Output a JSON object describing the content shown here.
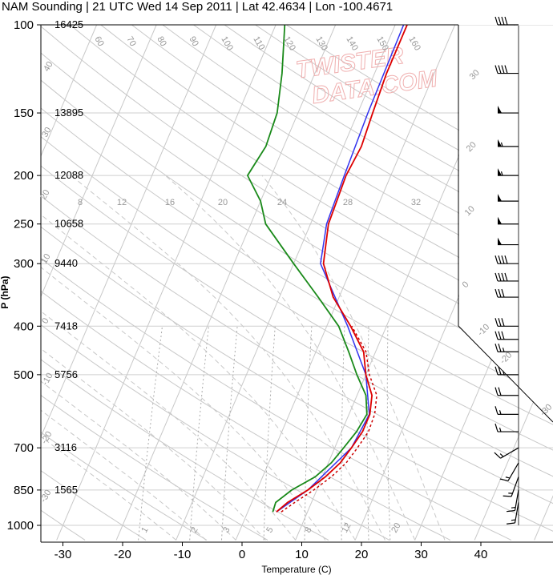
{
  "title": "NAM Sounding | 21 UTC Wed 14 Sep 2011 | Lat 42.4634 | Lon -100.4671",
  "watermark_line1": "TWISTER",
  "watermark_line2": "DATA.COM",
  "colors": {
    "temperature": "#dd0000",
    "virtual_temperature": "#cc0000",
    "dewpoint": "#1a8a1a",
    "parcel": "#3333ee",
    "isotherm": "#c8c8c8",
    "dry_adiabat": "#c8c8c8",
    "moist_adiabat": "#c8c8c8",
    "mixing_ratio": "#aaaaaa",
    "barb": "#000000"
  },
  "chart_data": {
    "type": "skew-t",
    "xlabel": "Temperature (C)",
    "ylabel": "P (hPa)",
    "xlim": [
      -34,
      52
    ],
    "ylim": [
      1070,
      100
    ],
    "x_ticks": [
      -30,
      -20,
      -10,
      0,
      10,
      20,
      30,
      40
    ],
    "p_ticks": [
      100,
      150,
      200,
      250,
      300,
      400,
      500,
      700,
      850,
      1000
    ],
    "heights_m": [
      {
        "p": 100,
        "z": "16425"
      },
      {
        "p": 150,
        "z": "13895"
      },
      {
        "p": 200,
        "z": "12088"
      },
      {
        "p": 250,
        "z": "10658"
      },
      {
        "p": 300,
        "z": "9440"
      },
      {
        "p": 400,
        "z": "7418"
      },
      {
        "p": 500,
        "z": "5756"
      },
      {
        "p": 700,
        "z": "3116"
      },
      {
        "p": 850,
        "z": "1565"
      }
    ],
    "mixing_ratio_labels": [
      "8",
      "12",
      "16",
      "20",
      "24",
      "28",
      "32"
    ],
    "isotherm_labels_top": [
      "60",
      "70",
      "80",
      "90",
      "100",
      "110",
      "120",
      "130",
      "140",
      "150",
      "160"
    ],
    "moist_labels_bottom": [
      "1",
      "2",
      "3",
      "5",
      "8",
      "12",
      "20"
    ],
    "right_labels": [
      "30",
      "20",
      "10",
      "0",
      "-10",
      "-20",
      "-30"
    ],
    "left_labels": [
      "40",
      "30",
      "20",
      "10",
      "0",
      "-10",
      "-20",
      "-30"
    ],
    "temperature": [
      {
        "p": 940,
        "t": 4.8
      },
      {
        "p": 900,
        "t": 6.0
      },
      {
        "p": 850,
        "t": 8.5
      },
      {
        "p": 800,
        "t": 10.5
      },
      {
        "p": 750,
        "t": 12.0
      },
      {
        "p": 700,
        "t": 12.8
      },
      {
        "p": 650,
        "t": 13.5
      },
      {
        "p": 600,
        "t": 13.5
      },
      {
        "p": 550,
        "t": 12.5
      },
      {
        "p": 500,
        "t": 10.0
      },
      {
        "p": 450,
        "t": 8.0
      },
      {
        "p": 400,
        "t": 4.0
      },
      {
        "p": 350,
        "t": -1.0
      },
      {
        "p": 300,
        "t": -5.0
      },
      {
        "p": 250,
        "t": -7.0
      },
      {
        "p": 200,
        "t": -7.5
      },
      {
        "p": 175,
        "t": -7.0
      },
      {
        "p": 150,
        "t": -7.5
      },
      {
        "p": 125,
        "t": -8.0
      },
      {
        "p": 100,
        "t": -8.0
      }
    ],
    "virtual_temperature": [
      {
        "p": 940,
        "t": 5.6
      },
      {
        "p": 900,
        "t": 7.2
      },
      {
        "p": 850,
        "t": 9.5
      },
      {
        "p": 800,
        "t": 11.5
      },
      {
        "p": 750,
        "t": 13.0
      },
      {
        "p": 700,
        "t": 13.8
      },
      {
        "p": 650,
        "t": 14.5
      },
      {
        "p": 600,
        "t": 14.3
      },
      {
        "p": 550,
        "t": 13.3
      },
      {
        "p": 500,
        "t": 10.6
      },
      {
        "p": 450,
        "t": 8.4
      },
      {
        "p": 400,
        "t": 4.2
      }
    ],
    "dewpoint": [
      {
        "p": 940,
        "t": 4.2
      },
      {
        "p": 900,
        "t": 4.0
      },
      {
        "p": 850,
        "t": 5.8
      },
      {
        "p": 800,
        "t": 8.8
      },
      {
        "p": 750,
        "t": 10.5
      },
      {
        "p": 700,
        "t": 11.5
      },
      {
        "p": 650,
        "t": 12.5
      },
      {
        "p": 600,
        "t": 13.0
      },
      {
        "p": 550,
        "t": 11.5
      },
      {
        "p": 500,
        "t": 8.5
      },
      {
        "p": 450,
        "t": 5.5
      },
      {
        "p": 400,
        "t": 2.0
      },
      {
        "p": 350,
        "t": -3.5
      },
      {
        "p": 300,
        "t": -10.0
      },
      {
        "p": 250,
        "t": -17.5
      },
      {
        "p": 225,
        "t": -20.0
      },
      {
        "p": 200,
        "t": -24.0
      },
      {
        "p": 175,
        "t": -23.0
      },
      {
        "p": 150,
        "t": -23.5
      },
      {
        "p": 125,
        "t": -25.5
      },
      {
        "p": 100,
        "t": -28.5
      }
    ],
    "parcel": [
      {
        "p": 940,
        "t": 4.8
      },
      {
        "p": 850,
        "t": 8.5
      },
      {
        "p": 700,
        "t": 12.8
      },
      {
        "p": 600,
        "t": 13.4
      },
      {
        "p": 500,
        "t": 10.0
      },
      {
        "p": 400,
        "t": 3.5
      },
      {
        "p": 300,
        "t": -5.5
      },
      {
        "p": 250,
        "t": -7.3
      },
      {
        "p": 200,
        "t": -7.8
      },
      {
        "p": 150,
        "t": -8.3
      },
      {
        "p": 100,
        "t": -8.6
      }
    ],
    "wind_barbs": [
      {
        "p": 100,
        "dir": 270,
        "spd": 40
      },
      {
        "p": 125,
        "dir": 270,
        "spd": 40
      },
      {
        "p": 150,
        "dir": 270,
        "spd": 50
      },
      {
        "p": 175,
        "dir": 270,
        "spd": 55
      },
      {
        "p": 200,
        "dir": 270,
        "spd": 55
      },
      {
        "p": 225,
        "dir": 270,
        "spd": 50
      },
      {
        "p": 250,
        "dir": 270,
        "spd": 50
      },
      {
        "p": 275,
        "dir": 270,
        "spd": 50
      },
      {
        "p": 300,
        "dir": 270,
        "spd": 40
      },
      {
        "p": 325,
        "dir": 270,
        "spd": 40
      },
      {
        "p": 350,
        "dir": 270,
        "spd": 30
      },
      {
        "p": 400,
        "dir": 270,
        "spd": 30
      },
      {
        "p": 425,
        "dir": 270,
        "spd": 30
      },
      {
        "p": 450,
        "dir": 270,
        "spd": 25
      },
      {
        "p": 500,
        "dir": 270,
        "spd": 25
      },
      {
        "p": 550,
        "dir": 270,
        "spd": 20
      },
      {
        "p": 600,
        "dir": 270,
        "spd": 15
      },
      {
        "p": 650,
        "dir": 270,
        "spd": 15
      },
      {
        "p": 700,
        "dir": 240,
        "spd": 15
      },
      {
        "p": 750,
        "dir": 210,
        "spd": 15
      },
      {
        "p": 800,
        "dir": 200,
        "spd": 15
      },
      {
        "p": 850,
        "dir": 190,
        "spd": 15
      },
      {
        "p": 900,
        "dir": 190,
        "spd": 15
      }
    ]
  }
}
